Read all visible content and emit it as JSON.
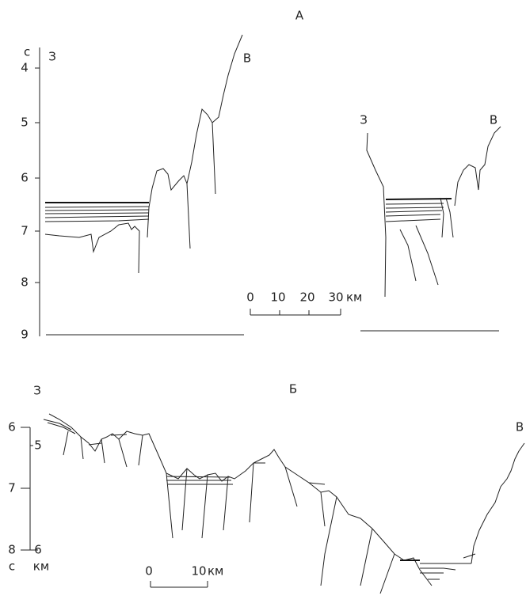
{
  "panel_a": {
    "label": "А",
    "axis": {
      "unit": "с",
      "ticks": [
        "4",
        "5",
        "6",
        "7",
        "8",
        "9"
      ]
    },
    "left_profile": {
      "west": "З",
      "east": "В"
    },
    "right_profile": {
      "west": "З",
      "east": "В"
    },
    "scale": {
      "ticks": [
        "0",
        "10",
        "20",
        "30"
      ],
      "unit": "км"
    }
  },
  "panel_b": {
    "label": "Б",
    "west": "З",
    "east": "В",
    "axis_left": {
      "unit": "с",
      "ticks": [
        "6",
        "7",
        "8"
      ]
    },
    "axis_right": {
      "unit": "км",
      "ticks": [
        "5",
        "6"
      ]
    },
    "scale": {
      "ticks": [
        "0",
        "10"
      ],
      "unit": "км"
    }
  }
}
